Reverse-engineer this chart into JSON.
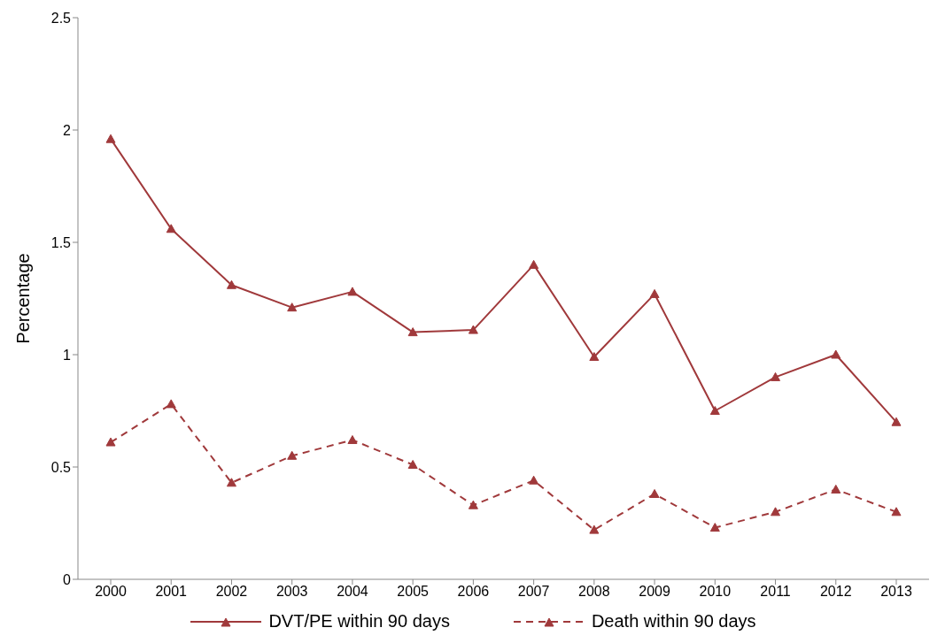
{
  "chart_data": {
    "type": "line",
    "ylabel": "Percentage",
    "categories": [
      "2000",
      "2001",
      "2002",
      "2003",
      "2004",
      "2005",
      "2006",
      "2007",
      "2008",
      "2009",
      "2010",
      "2011",
      "2012",
      "2013"
    ],
    "series": [
      {
        "name": "DVT/PE within 90 days",
        "color": "#a0393b",
        "line_style": "solid",
        "values": [
          1.96,
          1.56,
          1.31,
          1.21,
          1.28,
          1.1,
          1.11,
          1.4,
          0.99,
          1.27,
          0.75,
          0.9,
          1.0,
          0.7
        ]
      },
      {
        "name": "Death within 90 days",
        "color": "#a0393b",
        "line_style": "dashed",
        "values": [
          0.61,
          0.78,
          0.43,
          0.55,
          0.62,
          0.51,
          0.33,
          0.44,
          0.22,
          0.38,
          0.23,
          0.3,
          0.4,
          0.3
        ]
      }
    ],
    "ylim": [
      0,
      2.5
    ],
    "yticks": [
      0,
      0.5,
      1,
      1.5,
      2,
      2.5
    ],
    "grid": false,
    "legend": "bottom",
    "marker": "triangle"
  }
}
